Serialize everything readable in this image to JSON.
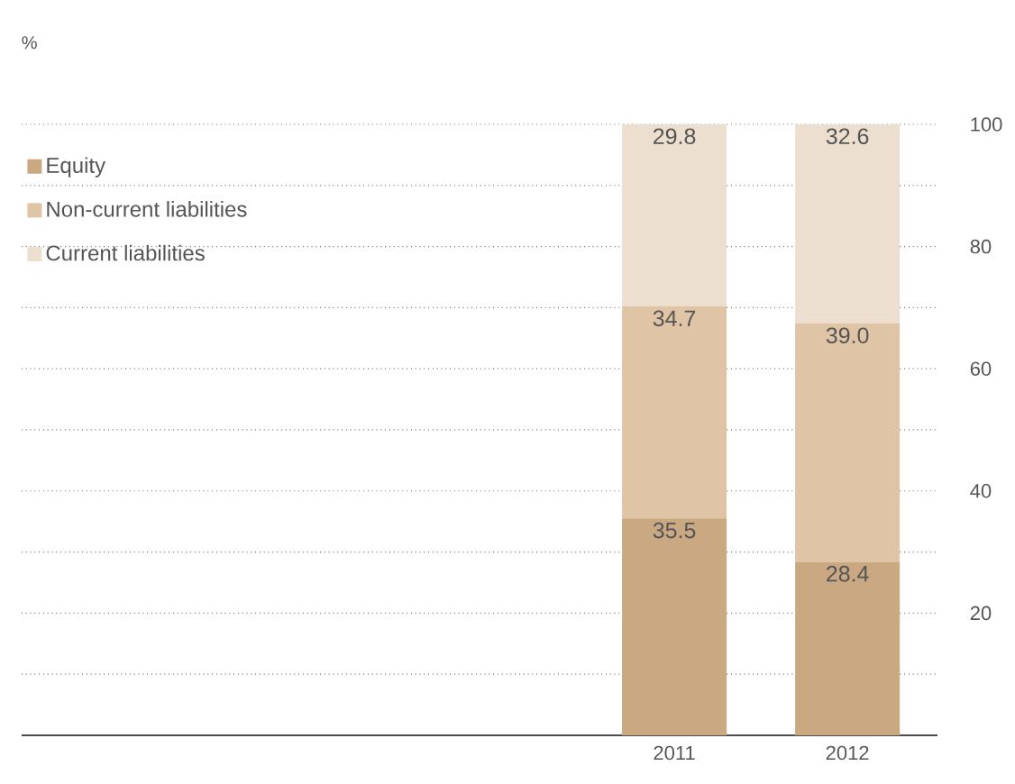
{
  "chart_data": {
    "type": "bar",
    "stacked": true,
    "annotations": [
      "%"
    ],
    "categories": [
      "2011",
      "2012"
    ],
    "series": [
      {
        "name": "Equity",
        "color": "#c9a882",
        "values": [
          35.5,
          28.4
        ],
        "value_labels": [
          "35.5",
          "28.4"
        ]
      },
      {
        "name": "Non-current liabilities",
        "color": "#dfc5a5",
        "values": [
          34.7,
          39.0
        ],
        "value_labels": [
          "34.7",
          "39.0"
        ]
      },
      {
        "name": "Current liabilities",
        "color": "#ecdfcf",
        "values": [
          29.8,
          32.6
        ],
        "value_labels": [
          "29.8",
          "32.6"
        ]
      }
    ],
    "ylim": [
      0,
      100
    ],
    "yticks": [
      {
        "value": 10,
        "label": null
      },
      20,
      {
        "value": 30,
        "label": null
      },
      40,
      {
        "value": 50,
        "label": null
      },
      60,
      {
        "value": 70,
        "label": null
      },
      80,
      {
        "value": 90,
        "label": null
      },
      100
    ],
    "grid": "y",
    "legend": "top left"
  }
}
